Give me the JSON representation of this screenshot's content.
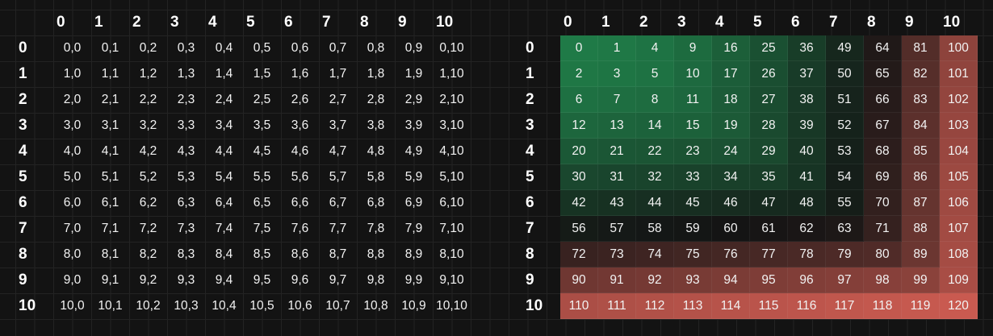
{
  "left_table": {
    "col_headers": [
      "0",
      "1",
      "2",
      "3",
      "4",
      "5",
      "6",
      "7",
      "8",
      "9",
      "10"
    ],
    "row_headers": [
      "0",
      "1",
      "2",
      "3",
      "4",
      "5",
      "6",
      "7",
      "8",
      "9",
      "10"
    ],
    "cells": [
      [
        "0,0",
        "0,1",
        "0,2",
        "0,3",
        "0,4",
        "0,5",
        "0,6",
        "0,7",
        "0,8",
        "0,9",
        "0,10"
      ],
      [
        "1,0",
        "1,1",
        "1,2",
        "1,3",
        "1,4",
        "1,5",
        "1,6",
        "1,7",
        "1,8",
        "1,9",
        "1,10"
      ],
      [
        "2,0",
        "2,1",
        "2,2",
        "2,3",
        "2,4",
        "2,5",
        "2,6",
        "2,7",
        "2,8",
        "2,9",
        "2,10"
      ],
      [
        "3,0",
        "3,1",
        "3,2",
        "3,3",
        "3,4",
        "3,5",
        "3,6",
        "3,7",
        "3,8",
        "3,9",
        "3,10"
      ],
      [
        "4,0",
        "4,1",
        "4,2",
        "4,3",
        "4,4",
        "4,5",
        "4,6",
        "4,7",
        "4,8",
        "4,9",
        "4,10"
      ],
      [
        "5,0",
        "5,1",
        "5,2",
        "5,3",
        "5,4",
        "5,5",
        "5,6",
        "5,7",
        "5,8",
        "5,9",
        "5,10"
      ],
      [
        "6,0",
        "6,1",
        "6,2",
        "6,3",
        "6,4",
        "6,5",
        "6,6",
        "6,7",
        "6,8",
        "6,9",
        "6,10"
      ],
      [
        "7,0",
        "7,1",
        "7,2",
        "7,3",
        "7,4",
        "7,5",
        "7,6",
        "7,7",
        "7,8",
        "7,9",
        "7,10"
      ],
      [
        "8,0",
        "8,1",
        "8,2",
        "8,3",
        "8,4",
        "8,5",
        "8,6",
        "8,7",
        "8,8",
        "8,9",
        "8,10"
      ],
      [
        "9,0",
        "9,1",
        "9,2",
        "9,3",
        "9,4",
        "9,5",
        "9,6",
        "9,7",
        "9,8",
        "9,9",
        "9,10"
      ],
      [
        "10,0",
        "10,1",
        "10,2",
        "10,3",
        "10,4",
        "10,5",
        "10,6",
        "10,7",
        "10,8",
        "10,9",
        "10,10"
      ]
    ]
  },
  "right_table": {
    "col_headers": [
      "0",
      "1",
      "2",
      "3",
      "4",
      "5",
      "6",
      "7",
      "8",
      "9",
      "10"
    ],
    "row_headers": [
      "0",
      "1",
      "2",
      "3",
      "4",
      "5",
      "6",
      "7",
      "8",
      "9",
      "10"
    ],
    "cells": [
      [
        0,
        1,
        4,
        9,
        16,
        25,
        36,
        49,
        64,
        81,
        100
      ],
      [
        2,
        3,
        5,
        10,
        17,
        26,
        37,
        50,
        65,
        82,
        101
      ],
      [
        6,
        7,
        8,
        11,
        18,
        27,
        38,
        51,
        66,
        83,
        102
      ],
      [
        12,
        13,
        14,
        15,
        19,
        28,
        39,
        52,
        67,
        84,
        103
      ],
      [
        20,
        21,
        22,
        23,
        24,
        29,
        40,
        53,
        68,
        85,
        104
      ],
      [
        30,
        31,
        32,
        33,
        34,
        35,
        41,
        54,
        69,
        86,
        105
      ],
      [
        42,
        43,
        44,
        45,
        46,
        47,
        48,
        55,
        70,
        87,
        106
      ],
      [
        56,
        57,
        58,
        59,
        60,
        61,
        62,
        63,
        71,
        88,
        107
      ],
      [
        72,
        73,
        74,
        75,
        76,
        77,
        78,
        79,
        80,
        89,
        108
      ],
      [
        90,
        91,
        92,
        93,
        94,
        95,
        96,
        97,
        98,
        99,
        109
      ],
      [
        110,
        111,
        112,
        113,
        114,
        115,
        116,
        117,
        118,
        119,
        120
      ]
    ],
    "color_scale": {
      "min": 0,
      "mid": 60,
      "max": 120,
      "low_color": "#1f7a47",
      "mid_color": "#141414",
      "high_color": "#c95a50"
    }
  }
}
